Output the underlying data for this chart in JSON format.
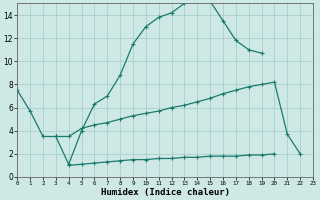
{
  "bg_color": "#cde8e5",
  "grid_color": "#aacfcb",
  "line_color": "#1a7a6e",
  "xlabel": "Humidex (Indice chaleur)",
  "ylim": [
    0,
    15
  ],
  "xlim": [
    0,
    23
  ],
  "yticks": [
    0,
    2,
    4,
    6,
    8,
    10,
    12,
    14
  ],
  "xticks": [
    0,
    1,
    2,
    3,
    4,
    5,
    6,
    7,
    8,
    9,
    10,
    11,
    12,
    13,
    14,
    15,
    16,
    17,
    18,
    19,
    20,
    21,
    22,
    23
  ],
  "line1_y": [
    7.5,
    5.7,
    3.5,
    3.5,
    1.1,
    4.0,
    6.3,
    7.0,
    8.8,
    11.5,
    13.0,
    13.8,
    14.2,
    15.0,
    15.2,
    15.2,
    13.5,
    11.8,
    11.0,
    10.7,
    null,
    null,
    null,
    null
  ],
  "line2_y": [
    null,
    null,
    null,
    3.5,
    3.5,
    4.2,
    4.5,
    4.7,
    5.0,
    5.3,
    5.5,
    5.7,
    6.0,
    6.2,
    6.5,
    6.8,
    7.2,
    7.5,
    7.8,
    8.0,
    8.2,
    3.7,
    2.0,
    null
  ],
  "line3_y": [
    null,
    null,
    null,
    null,
    1.0,
    1.1,
    1.2,
    1.3,
    1.4,
    1.5,
    1.5,
    1.6,
    1.6,
    1.7,
    1.7,
    1.8,
    1.8,
    1.8,
    1.9,
    1.9,
    2.0,
    null,
    null,
    null
  ]
}
